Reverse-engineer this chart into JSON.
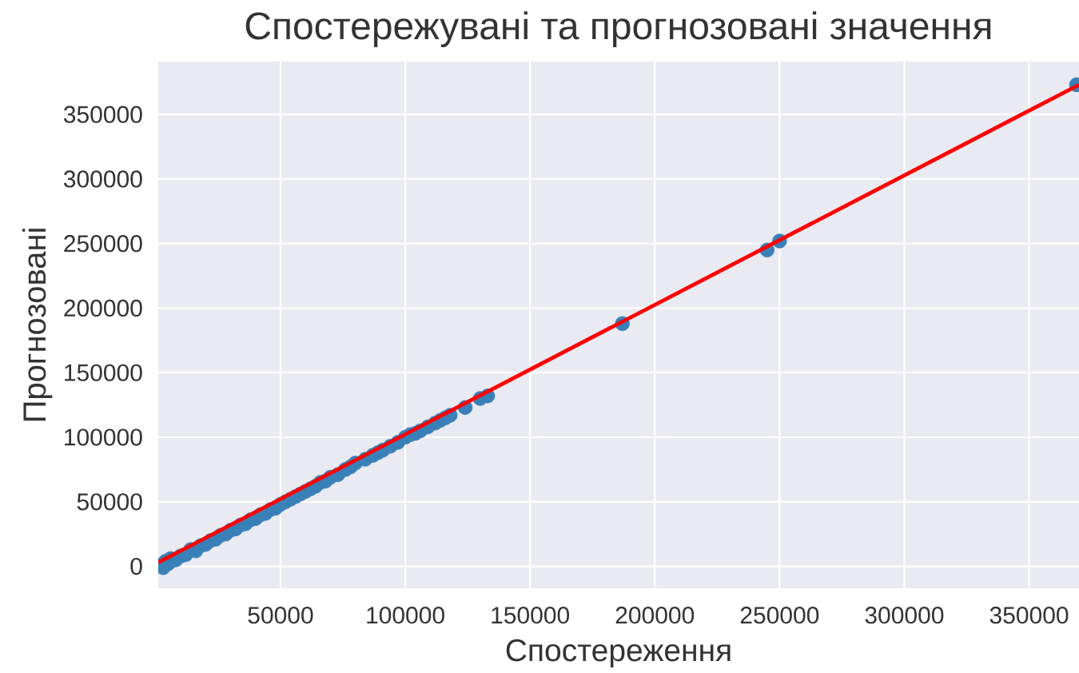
{
  "chart_data": {
    "type": "scatter",
    "title": "Спостережувані та прогнозовані значення",
    "xlabel": "Спостереження",
    "ylabel": "Прогнозовані",
    "xlim": [
      1000,
      370000
    ],
    "ylim": [
      -17000,
      391000
    ],
    "xticks": [
      50000,
      100000,
      150000,
      200000,
      250000,
      300000,
      350000
    ],
    "yticks": [
      0,
      50000,
      100000,
      150000,
      200000,
      250000,
      300000,
      350000
    ],
    "grid": true,
    "series": [
      {
        "color": "#3a80b8",
        "marker": "circle",
        "x": [
          2000,
          3000,
          4000,
          5000,
          6000,
          8000,
          10000,
          12000,
          14000,
          16000,
          18000,
          20000,
          22000,
          24000,
          26000,
          28000,
          30000,
          32000,
          34000,
          36000,
          38000,
          40000,
          42000,
          44000,
          46000,
          48000,
          50000,
          52000,
          54000,
          56000,
          58000,
          60000,
          62000,
          64000,
          66000,
          68000,
          70000,
          73000,
          76000,
          78000,
          80000,
          84000,
          87000,
          89000,
          91000,
          94000,
          97000,
          100000,
          102000,
          104000,
          106000,
          109000,
          112000,
          114000,
          116000,
          118000,
          124000,
          130000,
          133000,
          187000,
          245000,
          250000,
          369000
        ],
        "values": [
          1000,
          -1000,
          4000,
          2000,
          6000,
          5000,
          8000,
          9000,
          13000,
          12000,
          16000,
          17000,
          20000,
          21000,
          24000,
          25000,
          28000,
          29000,
          32000,
          33000,
          36000,
          37000,
          40000,
          41000,
          44000,
          45000,
          48000,
          50000,
          52000,
          54000,
          56000,
          58000,
          60000,
          62000,
          65000,
          66000,
          69000,
          71000,
          75000,
          77000,
          80000,
          83000,
          86000,
          88000,
          90000,
          93000,
          96000,
          100000,
          102000,
          103000,
          105000,
          108000,
          111000,
          113000,
          115000,
          117000,
          123000,
          130000,
          132000,
          188000,
          245000,
          252000,
          373000
        ]
      },
      {
        "type": "line",
        "color": "#ff0000",
        "line_style": "solid",
        "x": [
          1000,
          370000
        ],
        "values": [
          3000,
          373000
        ]
      }
    ]
  }
}
